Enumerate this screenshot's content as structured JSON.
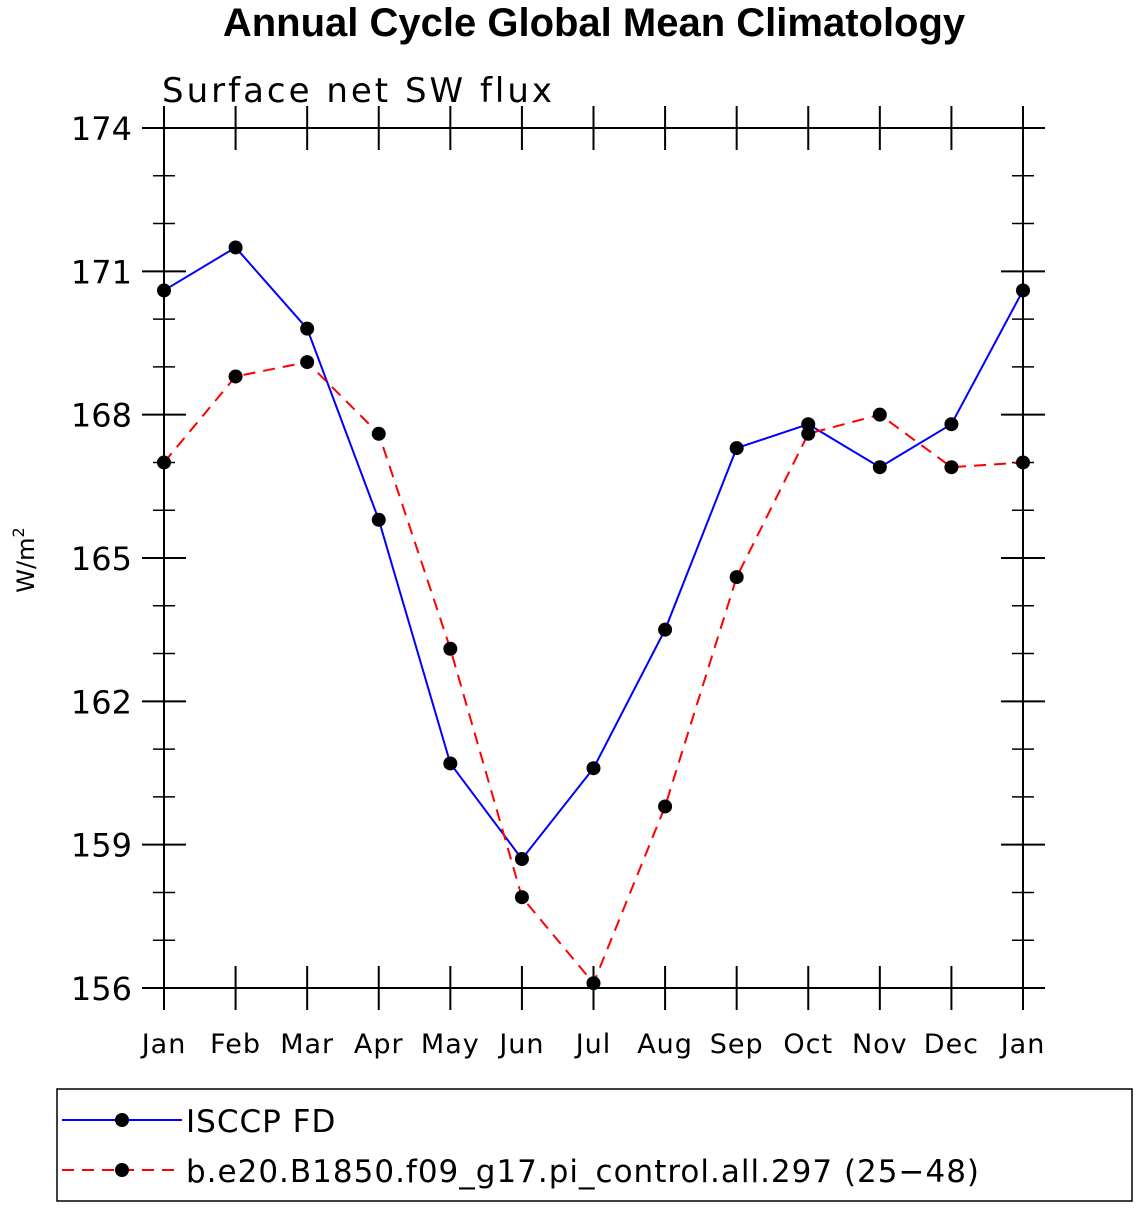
{
  "chart_data": {
    "type": "line",
    "title": "Annual Cycle Global Mean Climatology",
    "subtitle": "Surface net SW flux",
    "ylabel_base": "W/m",
    "ylabel_sup": "2",
    "ylim": [
      156,
      174
    ],
    "yticks": [
      156,
      159,
      162,
      165,
      168,
      171,
      174
    ],
    "categories": [
      "Jan",
      "Feb",
      "Mar",
      "Apr",
      "May",
      "Jun",
      "Jul",
      "Aug",
      "Sep",
      "Oct",
      "Nov",
      "Dec",
      "Jan"
    ],
    "series": [
      {
        "name": "ISCCP FD",
        "color": "#0000ff",
        "dash": "solid",
        "values": [
          170.6,
          171.5,
          169.8,
          165.8,
          160.7,
          158.7,
          160.6,
          163.5,
          167.3,
          167.8,
          166.9,
          167.8,
          170.6
        ]
      },
      {
        "name": "b.e20.B1850.f09_g17.pi_control.all.297 (25−48)",
        "color": "#ff0000",
        "dash": "dashed",
        "values": [
          167.0,
          168.8,
          169.1,
          167.6,
          163.1,
          157.9,
          156.1,
          159.8,
          164.6,
          167.6,
          168.0,
          166.9,
          167.0
        ]
      }
    ],
    "grid": false,
    "legend_position": "bottom"
  }
}
